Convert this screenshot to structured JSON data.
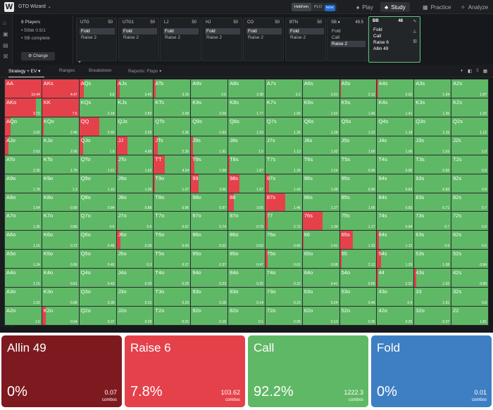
{
  "app": {
    "logo": "W",
    "title": "GTO Wizard",
    "caret": "⌄"
  },
  "game_toggle": {
    "holdem": "Hold'em",
    "plo": "PLO",
    "plo_badge": "NEW"
  },
  "nav": [
    {
      "icon": "♠",
      "label": "Play",
      "active": false
    },
    {
      "icon": "♣",
      "label": "Study",
      "active": true
    },
    {
      "icon": "▦",
      "label": "Practice",
      "active": false
    },
    {
      "icon": "✧",
      "label": "Analyze",
      "active": false
    }
  ],
  "sidebar_icons": [
    "⌂",
    "▣",
    "▤",
    "⌘",
    "⌶"
  ],
  "config": {
    "players": "8 Players",
    "blinds": "• 50bb 0.5/1",
    "complete": "• SB complete",
    "change_label": "⚙ Change",
    "icons": [
      "✎",
      "⊙",
      "✦"
    ]
  },
  "positions": [
    {
      "name": "UTG",
      "stack": "50",
      "actions": [
        "Fold",
        "Raise 2"
      ],
      "selected": 0
    },
    {
      "name": "UTG1",
      "stack": "50",
      "actions": [
        "Fold",
        "Raise 2"
      ],
      "selected": 0
    },
    {
      "name": "LJ",
      "stack": "50",
      "actions": [
        "Fold",
        "Raise 2"
      ],
      "selected": 0
    },
    {
      "name": "HJ",
      "stack": "50",
      "actions": [
        "Fold",
        "Raise 2"
      ],
      "selected": 0
    },
    {
      "name": "CO",
      "stack": "50",
      "actions": [
        "Fold",
        "Raise 2"
      ],
      "selected": 0
    },
    {
      "name": "BTN",
      "stack": "50",
      "actions": [
        "Fold",
        "Raise 2"
      ],
      "selected": 0
    },
    {
      "name": "SB ♦",
      "stack": "49.5",
      "actions": [
        "Fold",
        "Call",
        "Raise 2"
      ],
      "selected": 2
    }
  ],
  "current_position": {
    "name": "BB",
    "stack": "48",
    "actions": [
      "Fold",
      "Call",
      "Raise 6",
      "Allin 49"
    ],
    "icons": [
      "✎",
      "◬",
      "▥"
    ]
  },
  "tabs": [
    "Strategy + EV ▾",
    "Ranges",
    "Breakdown",
    "Reports: Flops ▾"
  ],
  "view_icons": [
    "◐",
    "◧",
    "⁞⁞",
    "▦"
  ],
  "colors": {
    "call": "#5fb865",
    "raise": "#e5414b",
    "allin": "#7d1a1f",
    "fold": "#3e7fc4"
  },
  "grid": [
    [
      {
        "h": "AA",
        "v": "10.44",
        "r": 1
      },
      {
        "h": "AKs",
        "v": "4.47",
        "r": 1
      },
      {
        "h": "AQs",
        "v": "3.8",
        "r": 0.12
      },
      {
        "h": "AJs",
        "v": "3.45",
        "r": 0.08
      },
      {
        "h": "ATs",
        "v": "3.16",
        "r": 0.05
      },
      {
        "h": "A9s",
        "v": "2.6",
        "r": 0
      },
      {
        "h": "A8s",
        "v": "2.38",
        "r": 0
      },
      {
        "h": "A7s",
        "v": "2.2",
        "r": 0
      },
      {
        "h": "A6s",
        "v": "2.01",
        "r": 0
      },
      {
        "h": "A5s",
        "v": "2.12",
        "r": 0.03
      },
      {
        "h": "A4s",
        "v": "2.02",
        "r": 0.03
      },
      {
        "h": "A3s",
        "v": "1.94",
        "r": 0
      },
      {
        "h": "A2s",
        "v": "1.87",
        "r": 0
      }
    ],
    [
      {
        "h": "AKo",
        "v": "3.72",
        "r": 0.85
      },
      {
        "h": "KK",
        "v": "7.5",
        "r": 1
      },
      {
        "h": "KQs",
        "v": "3.18",
        "r": 0
      },
      {
        "h": "KJs",
        "v": "2.82",
        "r": 0
      },
      {
        "h": "KTs",
        "v": "2.58",
        "r": 0
      },
      {
        "h": "K9s",
        "v": "2.09",
        "r": 0
      },
      {
        "h": "K8s",
        "v": "1.77",
        "r": 0
      },
      {
        "h": "K7s",
        "v": "1.65",
        "r": 0
      },
      {
        "h": "K6s",
        "v": "1.52",
        "r": 0
      },
      {
        "h": "K5s",
        "v": "1.46",
        "r": 0
      },
      {
        "h": "K4s",
        "v": "1.41",
        "r": 0
      },
      {
        "h": "K3s",
        "v": "1.35",
        "r": 0
      },
      {
        "h": "K2s",
        "v": "1.32",
        "r": 0
      }
    ],
    [
      {
        "h": "AQo",
        "v": "3.02",
        "r": 0.15
      },
      {
        "h": "KQo",
        "v": "2.45",
        "r": 0.05
      },
      {
        "h": "QQ",
        "v": "5.92",
        "r": 0.55
      },
      {
        "h": "QJs",
        "v": "2.55",
        "r": 0
      },
      {
        "h": "QTs",
        "v": "2.36",
        "r": 0
      },
      {
        "h": "Q9s",
        "v": "1.92",
        "r": 0
      },
      {
        "h": "Q8s",
        "v": "1.53",
        "r": 0
      },
      {
        "h": "Q7s",
        "v": "1.35",
        "r": 0
      },
      {
        "h": "Q6s",
        "v": "1.28",
        "r": 0
      },
      {
        "h": "Q5s",
        "v": "1.22",
        "r": 0
      },
      {
        "h": "Q4s",
        "v": "1.18",
        "r": 0
      },
      {
        "h": "Q3s",
        "v": "1.15",
        "r": 0
      },
      {
        "h": "Q2s",
        "v": "1.12",
        "r": 0
      }
    ],
    [
      {
        "h": "AJo",
        "v": "2.63",
        "r": 0.1
      },
      {
        "h": "KJo",
        "v": "2.06",
        "r": 0
      },
      {
        "h": "QJo",
        "v": "1.8",
        "r": 0.1
      },
      {
        "h": "JJ",
        "v": "4.99",
        "r": 0.3
      },
      {
        "h": "JTs",
        "v": "2.35",
        "r": 0.1
      },
      {
        "h": "J9s",
        "v": "1.91",
        "r": 0.05
      },
      {
        "h": "J8s",
        "v": "1.5",
        "r": 0
      },
      {
        "h": "J7s",
        "v": "1.13",
        "r": 0
      },
      {
        "h": "J6s",
        "v": "1.02",
        "r": 0
      },
      {
        "h": "J5s",
        "v": "1.00",
        "r": 0
      },
      {
        "h": "J4s",
        "v": "1.06",
        "r": 0
      },
      {
        "h": "J3s",
        "v": "1.03",
        "r": 0
      },
      {
        "h": "J2s",
        "v": "1.0",
        "r": 0
      }
    ],
    [
      {
        "h": "ATo",
        "v": "2.35",
        "r": 0
      },
      {
        "h": "KTo",
        "v": "1.79",
        "r": 0
      },
      {
        "h": "QTo",
        "v": "1.61",
        "r": 0
      },
      {
        "h": "JTo",
        "v": "1.62",
        "r": 0.05
      },
      {
        "h": "TT",
        "v": "4.24",
        "r": 0.3
      },
      {
        "h": "T9s",
        "v": "1.98",
        "r": 0.1
      },
      {
        "h": "T8s",
        "v": "1.67",
        "r": 0.04
      },
      {
        "h": "T7s",
        "v": "1.39",
        "r": 0
      },
      {
        "h": "T6s",
        "v": "1.14",
        "r": 0
      },
      {
        "h": "T5s",
        "v": "0.96",
        "r": 0
      },
      {
        "h": "T4s",
        "v": "0.95",
        "r": 0
      },
      {
        "h": "T3s",
        "v": "0.92",
        "r": 0
      },
      {
        "h": "T2s",
        "v": "0.9",
        "r": 0
      }
    ],
    [
      {
        "h": "A9o",
        "v": "1.78",
        "r": 0
      },
      {
        "h": "K9o",
        "v": "1.3",
        "r": 0
      },
      {
        "h": "Q9o",
        "v": "1.16",
        "r": 0
      },
      {
        "h": "J9o",
        "v": "1.09",
        "r": 0
      },
      {
        "h": "T9o",
        "v": "1.27",
        "r": 0.03
      },
      {
        "h": "99",
        "v": "3.56",
        "r": 0.2
      },
      {
        "h": "98s",
        "v": "1.67",
        "r": 0.3
      },
      {
        "h": "97s",
        "v": "1.43",
        "r": 0.1
      },
      {
        "h": "96s",
        "v": "1.09",
        "r": 0
      },
      {
        "h": "95s",
        "v": "0.99",
        "r": 0
      },
      {
        "h": "94s",
        "v": "0.83",
        "r": 0
      },
      {
        "h": "93s",
        "v": "0.83",
        "r": 0
      },
      {
        "h": "92s",
        "v": "0.8",
        "r": 0
      }
    ],
    [
      {
        "h": "A8o",
        "v": "1.54",
        "r": 0
      },
      {
        "h": "K8o",
        "v": "0.99",
        "r": 0
      },
      {
        "h": "Q8o",
        "v": "0.84",
        "r": 0
      },
      {
        "h": "J8o",
        "v": "0.88",
        "r": 0
      },
      {
        "h": "T8o",
        "v": "0.95",
        "r": 0
      },
      {
        "h": "98o",
        "v": "0.97",
        "r": 0
      },
      {
        "h": "88",
        "v": "3.05",
        "r": 0.15
      },
      {
        "h": "87s",
        "v": "1.45",
        "r": 0.55
      },
      {
        "h": "86s",
        "v": "1.27",
        "r": 0
      },
      {
        "h": "85s",
        "v": "1.05",
        "r": 0
      },
      {
        "h": "84s",
        "v": "0.83",
        "r": 0
      },
      {
        "h": "83s",
        "v": "0.71",
        "r": 0
      },
      {
        "h": "82s",
        "v": "0.7",
        "r": 0
      }
    ],
    [
      {
        "h": "A7o",
        "v": "1.35",
        "r": 0
      },
      {
        "h": "K7o",
        "v": "0.86",
        "r": 0
      },
      {
        "h": "Q7o",
        "v": "0.6",
        "r": 0
      },
      {
        "h": "J7o",
        "v": "0.6",
        "r": 0
      },
      {
        "h": "T7o",
        "v": "0.67",
        "r": 0
      },
      {
        "h": "97o",
        "v": "0.74",
        "r": 0
      },
      {
        "h": "87o",
        "v": "0.79",
        "r": 0
      },
      {
        "h": "77",
        "v": "2.72",
        "r": 0.05
      },
      {
        "h": "76s",
        "v": "1.34",
        "r": 0.55
      },
      {
        "h": "75s",
        "v": "1.17",
        "r": 0
      },
      {
        "h": "74s",
        "v": "0.94",
        "r": 0
      },
      {
        "h": "73s",
        "v": "0.7",
        "r": 0
      },
      {
        "h": "72s",
        "v": "0.6",
        "r": 0
      }
    ],
    [
      {
        "h": "A6o",
        "v": "1.15",
        "r": 0
      },
      {
        "h": "K6o",
        "v": "0.72",
        "r": 0
      },
      {
        "h": "Q6o",
        "v": "0.48",
        "r": 0
      },
      {
        "h": "J6o",
        "v": "0.39",
        "r": 0.1
      },
      {
        "h": "T6o",
        "v": "0.43",
        "r": 0
      },
      {
        "h": "96o",
        "v": "0.52",
        "r": 0
      },
      {
        "h": "86o",
        "v": "0.63",
        "r": 0
      },
      {
        "h": "76o",
        "v": "0.66",
        "r": 0
      },
      {
        "h": "66",
        "v": "2.41",
        "r": 0.03
      },
      {
        "h": "65s",
        "v": "1.32",
        "r": 0.35
      },
      {
        "h": "64s",
        "v": "1.12",
        "r": 0.05
      },
      {
        "h": "63s",
        "v": "0.9",
        "r": 0
      },
      {
        "h": "62s",
        "v": "0.6",
        "r": 0
      }
    ],
    [
      {
        "h": "A5o",
        "v": "1.24",
        "r": 0
      },
      {
        "h": "K5o",
        "v": "0.66",
        "r": 0
      },
      {
        "h": "Q5o",
        "v": "0.45",
        "r": 0
      },
      {
        "h": "J5o",
        "v": "0.3",
        "r": 0
      },
      {
        "h": "T5o",
        "v": "0.27",
        "r": 0
      },
      {
        "h": "95o",
        "v": "0.37",
        "r": 0
      },
      {
        "h": "85o",
        "v": "0.47",
        "r": 0
      },
      {
        "h": "75o",
        "v": "0.61",
        "r": 0.05
      },
      {
        "h": "65o",
        "v": "0.68",
        "r": 0
      },
      {
        "h": "55",
        "v": "2.12",
        "r": 0.05
      },
      {
        "h": "54s",
        "v": "1.29",
        "r": 0.1
      },
      {
        "h": "53s",
        "v": "1.08",
        "r": 0
      },
      {
        "h": "52s",
        "v": "0.84",
        "r": 0
      }
    ],
    [
      {
        "h": "A4o",
        "v": "1.15",
        "r": 0
      },
      {
        "h": "K4o",
        "v": "0.61",
        "r": 0
      },
      {
        "h": "Q4o",
        "v": "0.43",
        "r": 0
      },
      {
        "h": "J4o",
        "v": "0.33",
        "r": 0
      },
      {
        "h": "T4o",
        "v": "0.25",
        "r": 0
      },
      {
        "h": "94o",
        "v": "0.23",
        "r": 0
      },
      {
        "h": "84o",
        "v": "0.22",
        "r": 0
      },
      {
        "h": "74o",
        "v": "0.32",
        "r": 0
      },
      {
        "h": "64o",
        "v": "0.41",
        "r": 0
      },
      {
        "h": "54o",
        "v": "0.65",
        "r": 0
      },
      {
        "h": "44",
        "v": "2.02",
        "r": 0.03
      },
      {
        "h": "43s",
        "v": "1.02",
        "r": 0.05
      },
      {
        "h": "42s",
        "v": "0.89",
        "r": 0
      }
    ],
    [
      {
        "h": "A3o",
        "v": "1.02",
        "r": 0
      },
      {
        "h": "K3o",
        "v": "0.58",
        "r": 0
      },
      {
        "h": "Q3o",
        "v": "0.39",
        "r": 0
      },
      {
        "h": "J3o",
        "v": "0.31",
        "r": 0
      },
      {
        "h": "T3o",
        "v": "0.23",
        "r": 0
      },
      {
        "h": "93o",
        "v": "0.18",
        "r": 0
      },
      {
        "h": "83o",
        "v": "0.14",
        "r": 0
      },
      {
        "h": "73o",
        "v": "0.15",
        "r": 0
      },
      {
        "h": "63o",
        "v": "0.24",
        "r": 0
      },
      {
        "h": "53o",
        "v": "0.46",
        "r": 0
      },
      {
        "h": "43o",
        "v": "0.4",
        "r": 0
      },
      {
        "h": "33",
        "v": "1.91",
        "r": 0
      },
      {
        "h": "32s",
        "v": "0.8",
        "r": 0
      }
    ],
    [
      {
        "h": "A2o",
        "v": "1.0",
        "r": 0
      },
      {
        "h": "K2o",
        "v": "0.54",
        "r": 0.1
      },
      {
        "h": "Q2o",
        "v": "0.37",
        "r": 0
      },
      {
        "h": "J2o",
        "v": "0.29",
        "r": 0
      },
      {
        "h": "T2o",
        "v": "0.21",
        "r": 0
      },
      {
        "h": "92o",
        "v": "0.15",
        "r": 0
      },
      {
        "h": "82o",
        "v": "0.1",
        "r": 0
      },
      {
        "h": "72o",
        "v": "0.06",
        "r": 0
      },
      {
        "h": "62o",
        "v": "0.13",
        "r": 0
      },
      {
        "h": "52o",
        "v": "0.35",
        "r": 0
      },
      {
        "h": "42o",
        "v": "0.25",
        "r": 0
      },
      {
        "h": "32o",
        "v": "0.27",
        "r": 0
      },
      {
        "h": "22",
        "v": "1.81",
        "r": 0
      }
    ]
  ],
  "summary": [
    {
      "title": "Allin 49",
      "percent": "0%",
      "combos": "0.07",
      "unit": "combos",
      "color": "#7d1a1f"
    },
    {
      "title": "Raise 6",
      "percent": "7.8%",
      "combos": "103.62",
      "unit": "combos",
      "color": "#e5414b"
    },
    {
      "title": "Call",
      "percent": "92.2%",
      "combos": "1222.3",
      "unit": "combos",
      "color": "#5fb865"
    },
    {
      "title": "Fold",
      "percent": "0%",
      "combos": "0.01",
      "unit": "combos",
      "color": "#3e7fc4"
    }
  ]
}
